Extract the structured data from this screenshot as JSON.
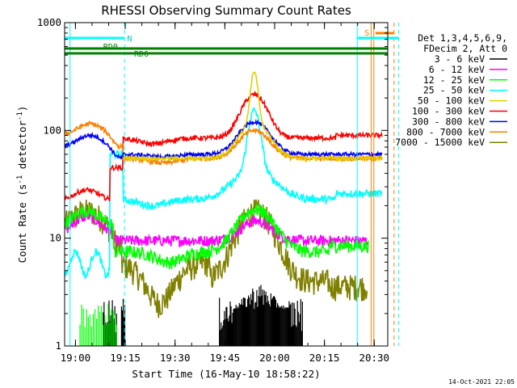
{
  "chart_data": {
    "type": "line",
    "title": "RHESSI Observing Summary Count Rates",
    "xlabel": "Start Time (16-May-10 18:58:22)",
    "ylabel_main": "Count Rate (s",
    "ylabel_sup1": "-1",
    "ylabel_mid": " detector",
    "ylabel_sup2": "-1",
    "ylabel_end": ")",
    "yscale": "log",
    "ylim": [
      1,
      1000
    ],
    "xlim_minutes": [
      -1.63,
      35.7
    ],
    "x_ticks": [
      {
        "m": 1.63,
        "label": "19:00"
      },
      {
        "m": 16.63,
        "label": "19:15"
      },
      {
        "m": 31.63,
        "label": "19:30"
      },
      {
        "m": 46.63,
        "label": "19:45"
      },
      {
        "m": 61.63,
        "label": "20:00"
      },
      {
        "m": 76.63,
        "label": "20:15"
      },
      {
        "m": 91.63,
        "label": "20:30"
      }
    ],
    "y_ticks": [
      {
        "v": 1,
        "label": "1"
      },
      {
        "v": 10,
        "label": "10"
      },
      {
        "v": 100,
        "label": "100"
      },
      {
        "v": 1000,
        "label": "1000"
      }
    ],
    "legend": {
      "header1": "Det 1,3,4,5,6,9,",
      "header2": "FDecim 2, Att 0",
      "placement": "right"
    },
    "series": [
      {
        "name": "3 - 6 keV",
        "color": "#000000"
      },
      {
        "name": "6 - 12 keV",
        "color": "#ff00ff"
      },
      {
        "name": "12 - 25 keV",
        "color": "#00ff00"
      },
      {
        "name": "25 - 50 keV",
        "color": "#00ffff"
      },
      {
        "name": "50 - 100 keV",
        "color": "#e0d000"
      },
      {
        "name": "100 - 300 keV",
        "color": "#ff0000"
      },
      {
        "name": "300 - 800 keV",
        "color": "#0000ff"
      },
      {
        "name": "800 - 7000 keV",
        "color": "#ff8000"
      },
      {
        "name": "7000 - 15000 keV",
        "color": "#808000"
      }
    ],
    "annotations": {
      "n_label": "N",
      "s_label": "S",
      "rd0_label": "RD0",
      "rd6_label": "RD6"
    },
    "timestamp": "14-Oct-2021 22:05"
  }
}
